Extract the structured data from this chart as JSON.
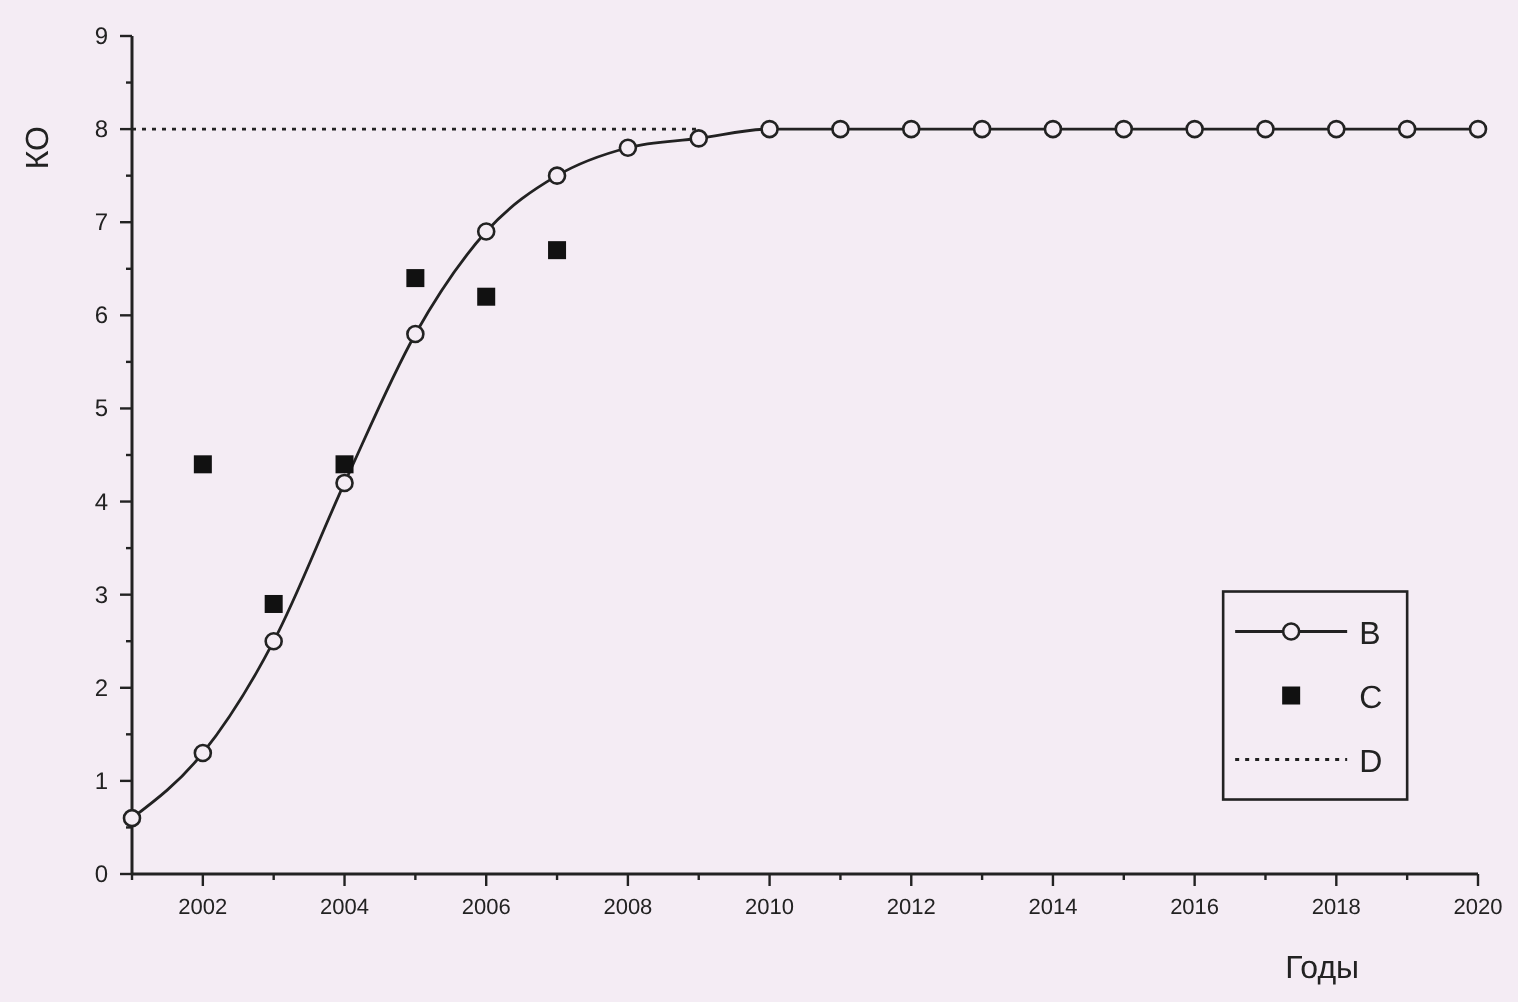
{
  "chart_data": {
    "type": "line",
    "xlabel": "Годы",
    "ylabel": "КО",
    "xlim": [
      2001,
      2020
    ],
    "xticks": [
      {
        "value": 2001,
        "label": null
      },
      2002,
      {
        "value": 2003,
        "label": null
      },
      2004,
      {
        "value": 2005,
        "label": null
      },
      2006,
      {
        "value": 2007,
        "label": null
      },
      2008,
      {
        "value": 2009,
        "label": null
      },
      2010,
      {
        "value": 2011,
        "label": null
      },
      2012,
      {
        "value": 2013,
        "label": null
      },
      2014,
      {
        "value": 2015,
        "label": null
      },
      2016,
      {
        "value": 2017,
        "label": null
      },
      2018,
      {
        "value": 2019,
        "label": null
      },
      2020
    ],
    "ylim": [
      0,
      9
    ],
    "yticks": [
      0,
      {
        "value": 0.5,
        "label": null
      },
      1,
      {
        "value": 1.5,
        "label": null
      },
      2,
      {
        "value": 2.5,
        "label": null
      },
      3,
      {
        "value": 3.5,
        "label": null
      },
      4,
      {
        "value": 4.5,
        "label": null
      },
      5,
      {
        "value": 5.5,
        "label": null
      },
      6,
      {
        "value": 6.5,
        "label": null
      },
      7,
      {
        "value": 7.5,
        "label": null
      },
      8,
      {
        "value": 8.5,
        "label": null
      },
      9
    ],
    "grid": false,
    "legend": "bottom right",
    "series": [
      {
        "name": "B",
        "color": "#222222",
        "marker": "circle",
        "line_style": "solid",
        "x": [
          2001,
          2002,
          2003,
          2004,
          2005,
          2006,
          2007,
          2008,
          2009,
          2010,
          2011,
          2012,
          2013,
          2014,
          2015,
          2016,
          2017,
          2018,
          2019,
          2020
        ],
        "values": [
          0.6,
          1.3,
          2.5,
          4.2,
          5.8,
          6.9,
          7.5,
          7.8,
          7.9,
          8,
          8,
          8,
          8,
          8,
          8,
          8,
          8,
          8,
          8,
          8
        ]
      },
      {
        "name": "C",
        "type": "scatter",
        "color": "#111111",
        "marker": "square",
        "x": [
          2002,
          2003,
          2004,
          2005,
          2006,
          2007
        ],
        "values": [
          4.4,
          2.9,
          4.4,
          6.4,
          6.2,
          6.7
        ]
      },
      {
        "name": "D",
        "color": "#222222",
        "marker": "none",
        "line_style": "dotted",
        "x": [
          2001,
          2009
        ],
        "values": [
          8,
          8
        ]
      }
    ]
  }
}
